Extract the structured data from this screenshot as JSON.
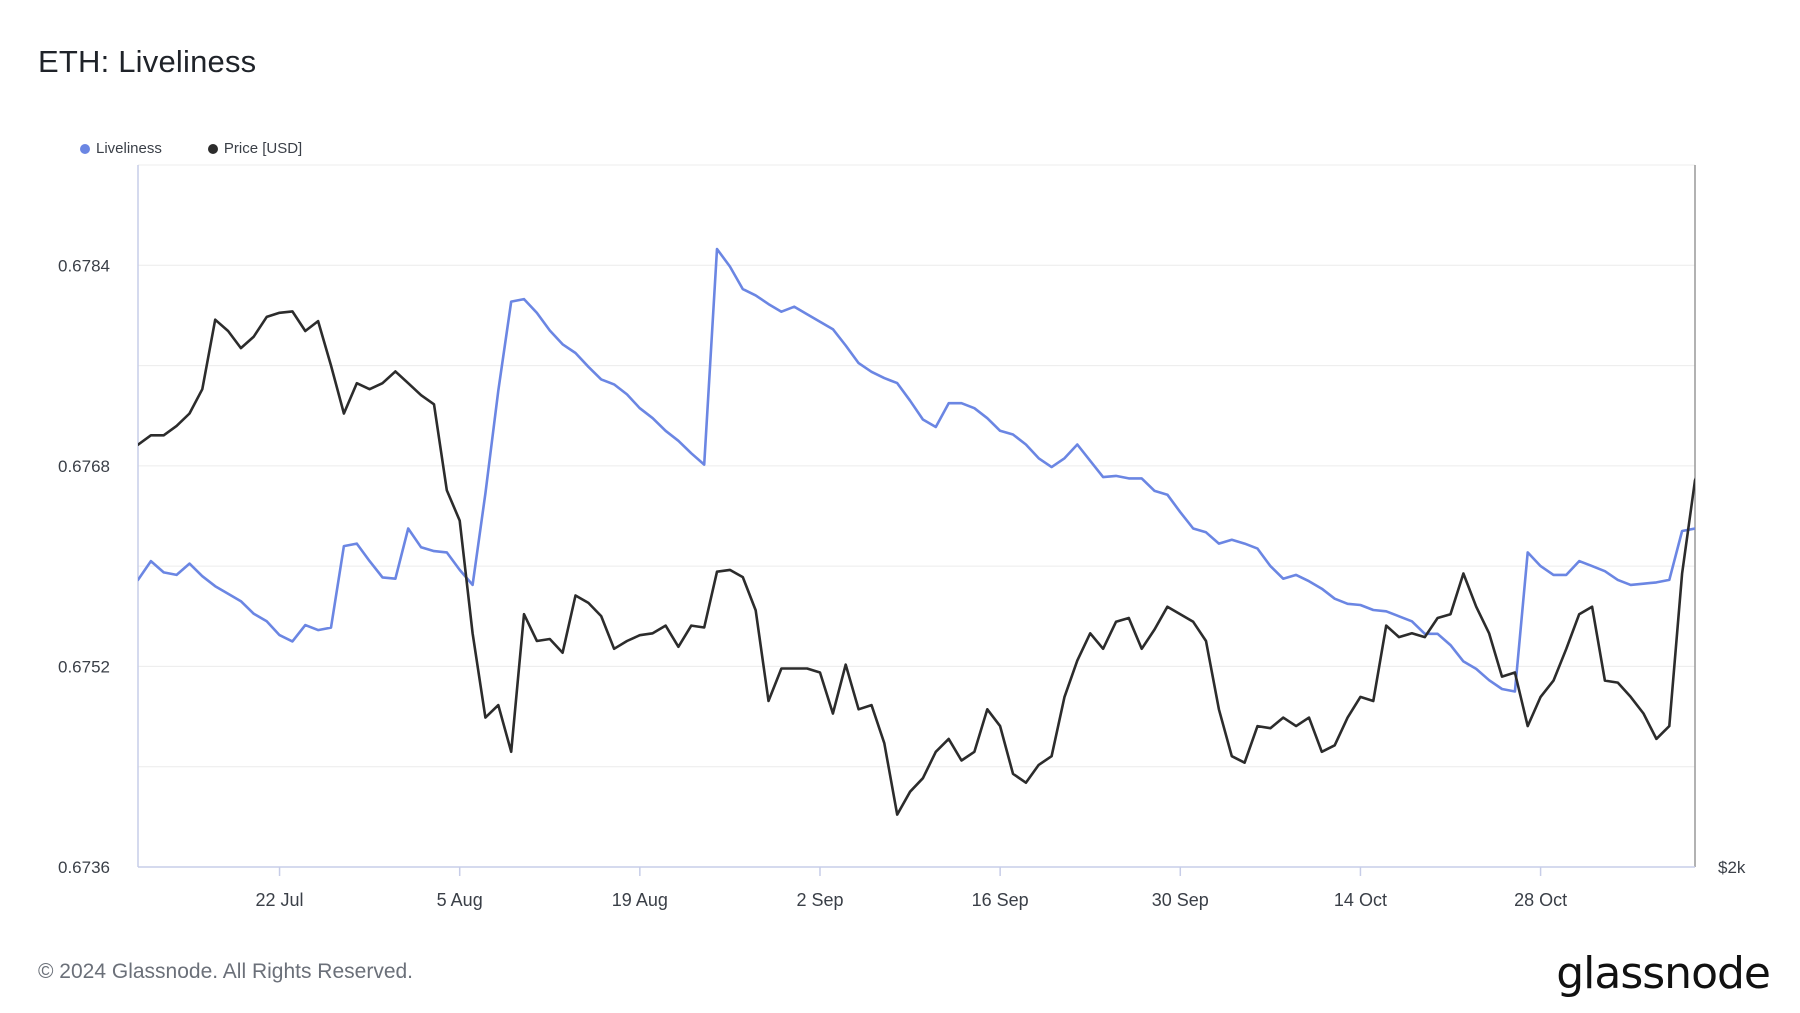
{
  "title": "ETH: Liveliness",
  "legend": {
    "liveliness": "Liveliness",
    "price": "Price [USD]"
  },
  "colors": {
    "liveliness": "#6b86e3",
    "price": "#2c2c2c",
    "grid": "#ececec",
    "axis": "#c7cde8",
    "text": "#3a3f47"
  },
  "footer": {
    "copyright": "© 2024 Glassnode. All Rights Reserved.",
    "brand": "glassnode"
  },
  "chart_data": {
    "type": "line",
    "title": "ETH: Liveliness",
    "x_range": [
      "2024-07-11",
      "2024-11-09"
    ],
    "x_ticks": [
      {
        "label": "22 Jul",
        "date": "2024-07-22"
      },
      {
        "label": "5 Aug",
        "date": "2024-08-05"
      },
      {
        "label": "19 Aug",
        "date": "2024-08-19"
      },
      {
        "label": "2 Sep",
        "date": "2024-09-02"
      },
      {
        "label": "16 Sep",
        "date": "2024-09-16"
      },
      {
        "label": "30 Sep",
        "date": "2024-09-30"
      },
      {
        "label": "14 Oct",
        "date": "2024-10-14"
      },
      {
        "label": "28 Oct",
        "date": "2024-10-28"
      }
    ],
    "y_left": {
      "ticks": [
        "0.6736",
        "0.6752",
        "0.6768",
        "0.6784"
      ],
      "tick_values": [
        0.6736,
        0.6752,
        0.6768,
        0.6784
      ],
      "ylim": [
        0.6736,
        0.6792
      ]
    },
    "y_right": {
      "ticks": [
        "$2k"
      ],
      "tick_values": [
        2000
      ],
      "scale": "log",
      "ylim": [
        2000,
        4100
      ]
    },
    "grid": true,
    "legend_position": "top-left",
    "series": [
      {
        "name": "Liveliness",
        "axis": "left",
        "points": [
          [
            "2024-07-11",
            0.67589
          ],
          [
            "2024-07-12",
            0.67604
          ],
          [
            "2024-07-13",
            0.67595
          ],
          [
            "2024-07-14",
            0.67593
          ],
          [
            "2024-07-15",
            0.67602
          ],
          [
            "2024-07-16",
            0.67592
          ],
          [
            "2024-07-17",
            0.67584
          ],
          [
            "2024-07-18",
            0.67578
          ],
          [
            "2024-07-19",
            0.67572
          ],
          [
            "2024-07-20",
            0.67562
          ],
          [
            "2024-07-21",
            0.67556
          ],
          [
            "2024-07-22",
            0.67545
          ],
          [
            "2024-07-23",
            0.6754
          ],
          [
            "2024-07-24",
            0.67553
          ],
          [
            "2024-07-25",
            0.67549
          ],
          [
            "2024-07-26",
            0.67551
          ],
          [
            "2024-07-27",
            0.67616
          ],
          [
            "2024-07-28",
            0.67618
          ],
          [
            "2024-07-29",
            0.67604
          ],
          [
            "2024-07-30",
            0.67591
          ],
          [
            "2024-07-31",
            0.6759
          ],
          [
            "2024-08-01",
            0.6763
          ],
          [
            "2024-08-02",
            0.67615
          ],
          [
            "2024-08-03",
            0.67612
          ],
          [
            "2024-08-04",
            0.67611
          ],
          [
            "2024-08-05",
            0.67597
          ],
          [
            "2024-08-06",
            0.67585
          ],
          [
            "2024-08-07",
            0.67658
          ],
          [
            "2024-08-08",
            0.6774
          ],
          [
            "2024-08-09",
            0.67811
          ],
          [
            "2024-08-10",
            0.67813
          ],
          [
            "2024-08-11",
            0.67802
          ],
          [
            "2024-08-12",
            0.67788
          ],
          [
            "2024-08-13",
            0.67777
          ],
          [
            "2024-08-14",
            0.6777
          ],
          [
            "2024-08-15",
            0.67759
          ],
          [
            "2024-08-16",
            0.67749
          ],
          [
            "2024-08-17",
            0.67745
          ],
          [
            "2024-08-18",
            0.67737
          ],
          [
            "2024-08-19",
            0.67726
          ],
          [
            "2024-08-20",
            0.67718
          ],
          [
            "2024-08-21",
            0.67708
          ],
          [
            "2024-08-22",
            0.677
          ],
          [
            "2024-08-23",
            0.6769
          ],
          [
            "2024-08-24",
            0.67681
          ],
          [
            "2024-08-25",
            0.67853
          ],
          [
            "2024-08-26",
            0.67839
          ],
          [
            "2024-08-27",
            0.67821
          ],
          [
            "2024-08-28",
            0.67816
          ],
          [
            "2024-08-29",
            0.67809
          ],
          [
            "2024-08-30",
            0.67803
          ],
          [
            "2024-08-31",
            0.67807
          ],
          [
            "2024-09-01",
            0.67801
          ],
          [
            "2024-09-02",
            0.67795
          ],
          [
            "2024-09-03",
            0.67789
          ],
          [
            "2024-09-04",
            0.67776
          ],
          [
            "2024-09-05",
            0.67762
          ],
          [
            "2024-09-06",
            0.67755
          ],
          [
            "2024-09-07",
            0.6775
          ],
          [
            "2024-09-08",
            0.67746
          ],
          [
            "2024-09-09",
            0.67732
          ],
          [
            "2024-09-10",
            0.67717
          ],
          [
            "2024-09-11",
            0.67711
          ],
          [
            "2024-09-12",
            0.6773
          ],
          [
            "2024-09-13",
            0.6773
          ],
          [
            "2024-09-14",
            0.67726
          ],
          [
            "2024-09-15",
            0.67718
          ],
          [
            "2024-09-16",
            0.67708
          ],
          [
            "2024-09-17",
            0.67705
          ],
          [
            "2024-09-18",
            0.67697
          ],
          [
            "2024-09-19",
            0.67686
          ],
          [
            "2024-09-20",
            0.67679
          ],
          [
            "2024-09-21",
            0.67686
          ],
          [
            "2024-09-22",
            0.67697
          ],
          [
            "2024-09-23",
            0.67684
          ],
          [
            "2024-09-24",
            0.67671
          ],
          [
            "2024-09-25",
            0.67672
          ],
          [
            "2024-09-26",
            0.6767
          ],
          [
            "2024-09-27",
            0.6767
          ],
          [
            "2024-09-28",
            0.6766
          ],
          [
            "2024-09-29",
            0.67657
          ],
          [
            "2024-09-30",
            0.67643
          ],
          [
            "2024-10-01",
            0.6763
          ],
          [
            "2024-10-02",
            0.67627
          ],
          [
            "2024-10-03",
            0.67618
          ],
          [
            "2024-10-04",
            0.67621
          ],
          [
            "2024-10-05",
            0.67618
          ],
          [
            "2024-10-06",
            0.67614
          ],
          [
            "2024-10-07",
            0.676
          ],
          [
            "2024-10-08",
            0.6759
          ],
          [
            "2024-10-09",
            0.67593
          ],
          [
            "2024-10-10",
            0.67588
          ],
          [
            "2024-10-11",
            0.67582
          ],
          [
            "2024-10-12",
            0.67574
          ],
          [
            "2024-10-13",
            0.6757
          ],
          [
            "2024-10-14",
            0.67569
          ],
          [
            "2024-10-15",
            0.67565
          ],
          [
            "2024-10-16",
            0.67564
          ],
          [
            "2024-10-17",
            0.6756
          ],
          [
            "2024-10-18",
            0.67556
          ],
          [
            "2024-10-19",
            0.67546
          ],
          [
            "2024-10-20",
            0.67546
          ],
          [
            "2024-10-21",
            0.67537
          ],
          [
            "2024-10-22",
            0.67524
          ],
          [
            "2024-10-23",
            0.67518
          ],
          [
            "2024-10-24",
            0.67509
          ],
          [
            "2024-10-25",
            0.67502
          ],
          [
            "2024-10-26",
            0.675
          ],
          [
            "2024-10-27",
            0.67611
          ],
          [
            "2024-10-28",
            0.676
          ],
          [
            "2024-10-29",
            0.67593
          ],
          [
            "2024-10-30",
            0.67593
          ],
          [
            "2024-10-31",
            0.67604
          ],
          [
            "2024-11-01",
            0.676
          ],
          [
            "2024-11-02",
            0.67596
          ],
          [
            "2024-11-03",
            0.67589
          ],
          [
            "2024-11-04",
            0.67585
          ],
          [
            "2024-11-05",
            0.67586
          ],
          [
            "2024-11-06",
            0.67587
          ],
          [
            "2024-11-07",
            0.67589
          ],
          [
            "2024-11-08",
            0.67628
          ],
          [
            "2024-11-09",
            0.6763
          ]
        ]
      },
      {
        "name": "Price [USD]",
        "axis": "right",
        "points": [
          [
            "2024-07-11",
            3080
          ],
          [
            "2024-07-12",
            3110
          ],
          [
            "2024-07-13",
            3110
          ],
          [
            "2024-07-14",
            3140
          ],
          [
            "2024-07-15",
            3180
          ],
          [
            "2024-07-16",
            3260
          ],
          [
            "2024-07-17",
            3500
          ],
          [
            "2024-07-18",
            3460
          ],
          [
            "2024-07-19",
            3400
          ],
          [
            "2024-07-20",
            3440
          ],
          [
            "2024-07-21",
            3510
          ],
          [
            "2024-07-22",
            3525
          ],
          [
            "2024-07-23",
            3530
          ],
          [
            "2024-07-24",
            3460
          ],
          [
            "2024-07-25",
            3495
          ],
          [
            "2024-07-26",
            3340
          ],
          [
            "2024-07-27",
            3180
          ],
          [
            "2024-07-28",
            3280
          ],
          [
            "2024-07-29",
            3260
          ],
          [
            "2024-07-30",
            3280
          ],
          [
            "2024-07-31",
            3320
          ],
          [
            "2024-08-01",
            3280
          ],
          [
            "2024-08-02",
            3240
          ],
          [
            "2024-08-03",
            3210
          ],
          [
            "2024-08-04",
            2940
          ],
          [
            "2024-08-05",
            2850
          ],
          [
            "2024-08-06",
            2540
          ],
          [
            "2024-08-07",
            2330
          ],
          [
            "2024-08-08",
            2360
          ],
          [
            "2024-08-09",
            2250
          ],
          [
            "2024-08-10",
            2590
          ],
          [
            "2024-08-11",
            2520
          ],
          [
            "2024-08-12",
            2525
          ],
          [
            "2024-08-13",
            2490
          ],
          [
            "2024-08-14",
            2640
          ],
          [
            "2024-08-15",
            2620
          ],
          [
            "2024-08-16",
            2585
          ],
          [
            "2024-08-17",
            2500
          ],
          [
            "2024-08-18",
            2520
          ],
          [
            "2024-08-19",
            2535
          ],
          [
            "2024-08-20",
            2540
          ],
          [
            "2024-08-21",
            2560
          ],
          [
            "2024-08-22",
            2505
          ],
          [
            "2024-08-23",
            2560
          ],
          [
            "2024-08-24",
            2555
          ],
          [
            "2024-08-25",
            2705
          ],
          [
            "2024-08-26",
            2710
          ],
          [
            "2024-08-27",
            2690
          ],
          [
            "2024-08-28",
            2600
          ],
          [
            "2024-08-29",
            2370
          ],
          [
            "2024-08-30",
            2450
          ],
          [
            "2024-08-31",
            2450
          ],
          [
            "2024-09-01",
            2450
          ],
          [
            "2024-09-02",
            2440
          ],
          [
            "2024-09-03",
            2340
          ],
          [
            "2024-09-04",
            2460
          ],
          [
            "2024-09-05",
            2350
          ],
          [
            "2024-09-06",
            2360
          ],
          [
            "2024-09-07",
            2270
          ],
          [
            "2024-09-08",
            2110
          ],
          [
            "2024-09-09",
            2160
          ],
          [
            "2024-09-10",
            2190
          ],
          [
            "2024-09-11",
            2250
          ],
          [
            "2024-09-12",
            2280
          ],
          [
            "2024-09-13",
            2230
          ],
          [
            "2024-09-14",
            2250
          ],
          [
            "2024-09-15",
            2350
          ],
          [
            "2024-09-16",
            2310
          ],
          [
            "2024-09-17",
            2200
          ],
          [
            "2024-09-18",
            2180
          ],
          [
            "2024-09-19",
            2220
          ],
          [
            "2024-09-20",
            2240
          ],
          [
            "2024-09-21",
            2380
          ],
          [
            "2024-09-22",
            2470
          ],
          [
            "2024-09-23",
            2540
          ],
          [
            "2024-09-24",
            2500
          ],
          [
            "2024-09-25",
            2570
          ],
          [
            "2024-09-26",
            2580
          ],
          [
            "2024-09-27",
            2500
          ],
          [
            "2024-09-28",
            2550
          ],
          [
            "2024-09-29",
            2610
          ],
          [
            "2024-09-30",
            2590
          ],
          [
            "2024-10-01",
            2570
          ],
          [
            "2024-10-02",
            2520
          ],
          [
            "2024-10-03",
            2350
          ],
          [
            "2024-10-04",
            2240
          ],
          [
            "2024-10-05",
            2225
          ],
          [
            "2024-10-06",
            2310
          ],
          [
            "2024-10-07",
            2305
          ],
          [
            "2024-10-08",
            2330
          ],
          [
            "2024-10-09",
            2310
          ],
          [
            "2024-10-10",
            2330
          ],
          [
            "2024-10-11",
            2250
          ],
          [
            "2024-10-12",
            2265
          ],
          [
            "2024-10-13",
            2330
          ],
          [
            "2024-10-14",
            2380
          ],
          [
            "2024-10-15",
            2370
          ],
          [
            "2024-10-16",
            2560
          ],
          [
            "2024-10-17",
            2530
          ],
          [
            "2024-10-18",
            2540
          ],
          [
            "2024-10-19",
            2530
          ],
          [
            "2024-10-20",
            2580
          ],
          [
            "2024-10-21",
            2590
          ],
          [
            "2024-10-22",
            2700
          ],
          [
            "2024-10-23",
            2610
          ],
          [
            "2024-10-24",
            2540
          ],
          [
            "2024-10-25",
            2430
          ],
          [
            "2024-10-26",
            2440
          ],
          [
            "2024-10-27",
            2310
          ],
          [
            "2024-10-28",
            2380
          ],
          [
            "2024-10-29",
            2420
          ],
          [
            "2024-10-30",
            2500
          ],
          [
            "2024-10-31",
            2590
          ],
          [
            "2024-11-01",
            2610
          ],
          [
            "2024-11-02",
            2420
          ],
          [
            "2024-11-03",
            2415
          ],
          [
            "2024-11-04",
            2380
          ],
          [
            "2024-11-05",
            2340
          ],
          [
            "2024-11-06",
            2280
          ],
          [
            "2024-11-07",
            2310
          ],
          [
            "2024-11-08",
            2700
          ],
          [
            "2024-11-09",
            2970
          ],
          [
            "2024-11-10",
            3050
          ],
          [
            "2024-11-11",
            3240
          ]
        ]
      }
    ]
  }
}
